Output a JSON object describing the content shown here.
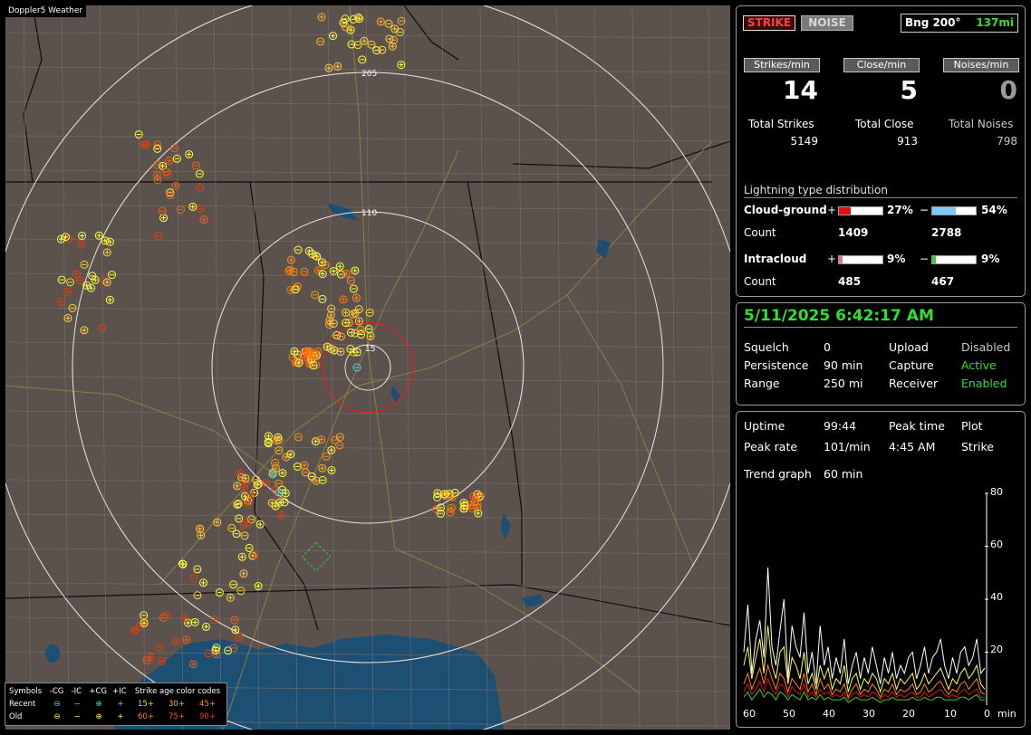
{
  "map": {
    "title": "Doppler5 Weather",
    "range_labels": [
      "205",
      "110",
      "15"
    ]
  },
  "legend": {
    "header": [
      "Symbols",
      "-CG",
      "-IC",
      "+CG",
      "+IC",
      "Strike age color codes"
    ],
    "recent": {
      "label": "Recent",
      "ages": [
        "15+",
        "30+",
        "45+"
      ]
    },
    "old": {
      "label": "Old",
      "ages": [
        "60+",
        "75+",
        "90+"
      ]
    },
    "colors": {
      "age15": "#ffd040",
      "age30": "#ffb030",
      "age45": "#ff9020",
      "age60": "#ff8000",
      "age75": "#f06020",
      "age90": "#e04010",
      "recent_symbol": "#40e0e0",
      "old_symbol": "#ffff40"
    }
  },
  "status": {
    "strike_button": "STRIKE",
    "noise_button": "NOISE",
    "bearing": "Bng 200°",
    "distance": "137mi"
  },
  "counters": {
    "strikes_label": "Strikes/min",
    "close_label": "Close/min",
    "noises_label": "Noises/min",
    "strikes_value": "14",
    "close_value": "5",
    "noises_value": "0",
    "total_strikes_label": "Total Strikes",
    "total_close_label": "Total Close",
    "total_noises_label": "Total Noises",
    "total_strikes": "5149",
    "total_close": "913",
    "total_noises": "798"
  },
  "distribution": {
    "title": "Lightning type distribution",
    "cloud_ground_label": "Cloud-ground",
    "intracloud_label": "Intracloud",
    "count_label": "Count",
    "plus": "+",
    "minus": "−",
    "cg_plus_pct": "27%",
    "cg_minus_pct": "54%",
    "cg_plus_count": "1409",
    "cg_minus_count": "2788",
    "ic_plus_pct": "9%",
    "ic_minus_pct": "9%",
    "ic_plus_count": "485",
    "ic_minus_count": "467",
    "cg_plus_fraction": 0.27,
    "cg_minus_fraction": 0.54,
    "ic_plus_fraction": 0.09,
    "ic_minus_fraction": 0.09,
    "colors": {
      "cg_plus": "#e01010",
      "cg_minus": "#7ec8f8",
      "ic_plus": "#e070b0",
      "ic_minus": "#30d030"
    }
  },
  "system": {
    "datetime": "5/11/2025 6:42:17 AM",
    "squelch_label": "Squelch",
    "squelch_value": "0",
    "persistence_label": "Persistence",
    "persistence_value": "90 min",
    "range_label": "Range",
    "range_value": "250 mi",
    "upload_label": "Upload",
    "upload_value": "Disabled",
    "capture_label": "Capture",
    "capture_value": "Active",
    "receiver_label": "Receiver",
    "receiver_value": "Enabled"
  },
  "trend": {
    "uptime_label": "Uptime",
    "uptime_value": "99:44",
    "peak_time_label": "Peak time",
    "peak_time_value": "4:45 AM",
    "plot_label": "Plot",
    "plot_value": "Strike",
    "peak_rate_label": "Peak rate",
    "peak_rate_value": "101/min",
    "trend_graph_label": "Trend graph",
    "trend_graph_value": "60 min",
    "x_ticks": [
      "60",
      "50",
      "40",
      "30",
      "20",
      "10",
      "0"
    ],
    "x_unit": "min",
    "y_ticks": [
      "80",
      "60",
      "40",
      "20"
    ]
  },
  "chart_data": {
    "type": "line",
    "x": [
      60,
      59,
      58,
      57,
      56,
      55,
      54,
      53,
      52,
      51,
      50,
      49,
      48,
      47,
      46,
      45,
      44,
      43,
      42,
      41,
      40,
      39,
      38,
      37,
      36,
      35,
      34,
      33,
      32,
      31,
      30,
      29,
      28,
      27,
      26,
      25,
      24,
      23,
      22,
      21,
      20,
      19,
      18,
      17,
      16,
      15,
      14,
      13,
      12,
      11,
      10,
      9,
      8,
      7,
      6,
      5,
      4,
      3,
      2,
      1,
      0
    ],
    "ylim": [
      0,
      80
    ],
    "series": [
      {
        "color": "#ffffff",
        "values": [
          20,
          38,
          12,
          25,
          32,
          18,
          52,
          22,
          15,
          28,
          40,
          10,
          30,
          22,
          18,
          35,
          12,
          20,
          8,
          30,
          15,
          22,
          10,
          18,
          12,
          25,
          8,
          15,
          20,
          10,
          18,
          12,
          22,
          15,
          8,
          18,
          12,
          20,
          10,
          15,
          12,
          18,
          20,
          10,
          15,
          22,
          12,
          18,
          20,
          25,
          15,
          10,
          18,
          12,
          20,
          22,
          15,
          18,
          25,
          12,
          14
        ]
      },
      {
        "color": "#ffff40",
        "values": [
          15,
          22,
          10,
          18,
          25,
          12,
          30,
          15,
          10,
          20,
          22,
          8,
          18,
          15,
          10,
          20,
          8,
          12,
          6,
          15,
          10,
          14,
          6,
          10,
          8,
          15,
          5,
          10,
          12,
          6,
          10,
          8,
          12,
          10,
          5,
          10,
          8,
          12,
          6,
          10,
          8,
          10,
          12,
          6,
          8,
          12,
          8,
          10,
          12,
          14,
          10,
          6,
          10,
          8,
          12,
          14,
          10,
          12,
          15,
          8,
          6
        ]
      },
      {
        "color": "#ff8020",
        "values": [
          8,
          12,
          6,
          10,
          14,
          8,
          15,
          10,
          6,
          12,
          10,
          5,
          10,
          8,
          6,
          12,
          5,
          8,
          4,
          10,
          6,
          8,
          4,
          6,
          5,
          8,
          3,
          6,
          8,
          4,
          6,
          5,
          8,
          6,
          3,
          6,
          5,
          8,
          4,
          6,
          5,
          6,
          8,
          4,
          5,
          8,
          5,
          6,
          8,
          9,
          6,
          4,
          6,
          5,
          8,
          9,
          6,
          8,
          10,
          5,
          4
        ]
      },
      {
        "color": "#30d030",
        "values": [
          3,
          5,
          2,
          4,
          6,
          3,
          5,
          4,
          2,
          5,
          4,
          2,
          4,
          3,
          2,
          5,
          2,
          3,
          2,
          4,
          2,
          3,
          2,
          2,
          2,
          3,
          1,
          2,
          3,
          2,
          2,
          2,
          3,
          2,
          1,
          2,
          2,
          3,
          2,
          2,
          2,
          2,
          3,
          2,
          2,
          3,
          2,
          2,
          3,
          3,
          2,
          2,
          2,
          2,
          3,
          3,
          2,
          3,
          4,
          2,
          2
        ]
      },
      {
        "color": "#e01010",
        "values": [
          5,
          8,
          4,
          6,
          9,
          5,
          10,
          6,
          4,
          8,
          7,
          3,
          7,
          5,
          4,
          8,
          3,
          5,
          3,
          6,
          4,
          5,
          3,
          4,
          3,
          5,
          2,
          4,
          5,
          3,
          4,
          3,
          5,
          4,
          2,
          4,
          3,
          5,
          3,
          4,
          3,
          4,
          5,
          3,
          3,
          5,
          3,
          4,
          5,
          6,
          4,
          3,
          4,
          3,
          5,
          6,
          4,
          5,
          6,
          3,
          3
        ]
      }
    ]
  }
}
